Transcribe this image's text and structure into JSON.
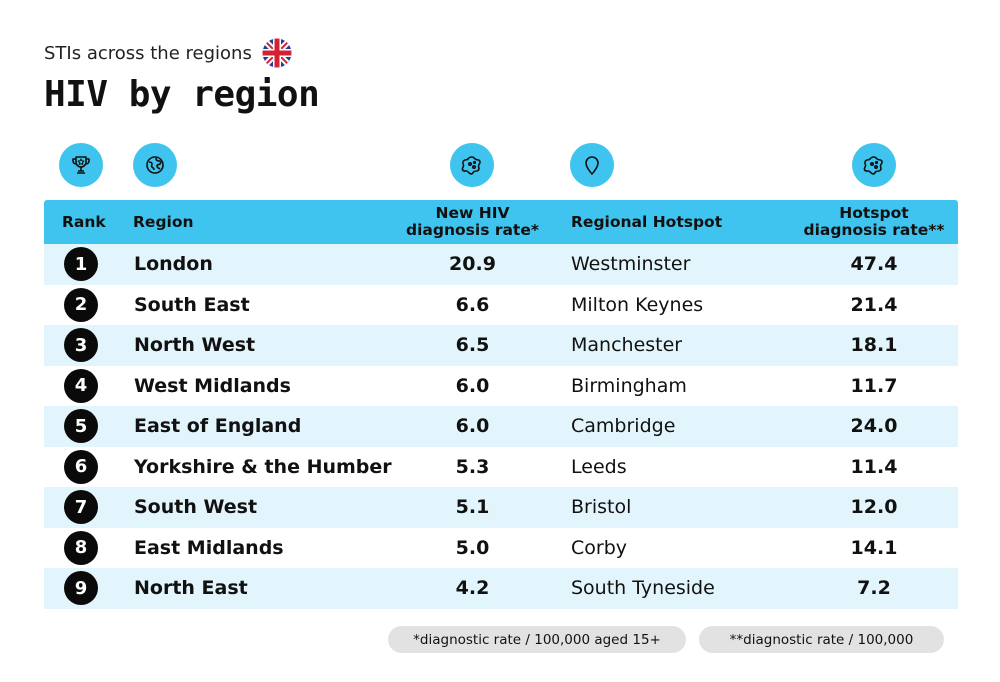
{
  "header": {
    "subtitle": "STIs across the regions",
    "title": "HIV by region",
    "flag_icon": "uk-flag-icon"
  },
  "icons": {
    "rank": "trophy-icon",
    "region": "globe-icon",
    "rate": "virus-icon",
    "hotspot": "location-pin-icon",
    "hotspot_rate": "virus-icon",
    "color": "#3ec4ee"
  },
  "table": {
    "columns": {
      "rank": "Rank",
      "region": "Region",
      "rate_line1": "New HIV",
      "rate_line2": "diagnosis rate*",
      "hotspot": "Regional Hotspot",
      "hotspot_rate_line1": "Hotspot",
      "hotspot_rate_line2": "diagnosis rate**"
    },
    "rows": [
      {
        "rank": "1",
        "region": "London",
        "rate": "20.9",
        "hotspot": "Westminster",
        "hotspot_rate": "47.4"
      },
      {
        "rank": "2",
        "region": "South East",
        "rate": "6.6",
        "hotspot": "Milton Keynes",
        "hotspot_rate": "21.4"
      },
      {
        "rank": "3",
        "region": "North West",
        "rate": "6.5",
        "hotspot": "Manchester",
        "hotspot_rate": "18.1"
      },
      {
        "rank": "4",
        "region": "West Midlands",
        "rate": "6.0",
        "hotspot": "Birmingham",
        "hotspot_rate": "11.7"
      },
      {
        "rank": "5",
        "region": "East of England",
        "rate": "6.0",
        "hotspot": "Cambridge",
        "hotspot_rate": "24.0"
      },
      {
        "rank": "6",
        "region": "Yorkshire & the Humber",
        "rate": "5.3",
        "hotspot": "Leeds",
        "hotspot_rate": "11.4"
      },
      {
        "rank": "7",
        "region": "South West",
        "rate": "5.1",
        "hotspot": "Bristol",
        "hotspot_rate": "12.0"
      },
      {
        "rank": "8",
        "region": "East Midlands",
        "rate": "5.0",
        "hotspot": "Corby",
        "hotspot_rate": "14.1"
      },
      {
        "rank": "9",
        "region": "North East",
        "rate": "4.2",
        "hotspot": "South Tyneside",
        "hotspot_rate": "7.2"
      }
    ]
  },
  "footnotes": {
    "note1": "*diagnostic rate / 100,000 aged 15+",
    "note2": "**diagnostic rate / 100,000"
  }
}
